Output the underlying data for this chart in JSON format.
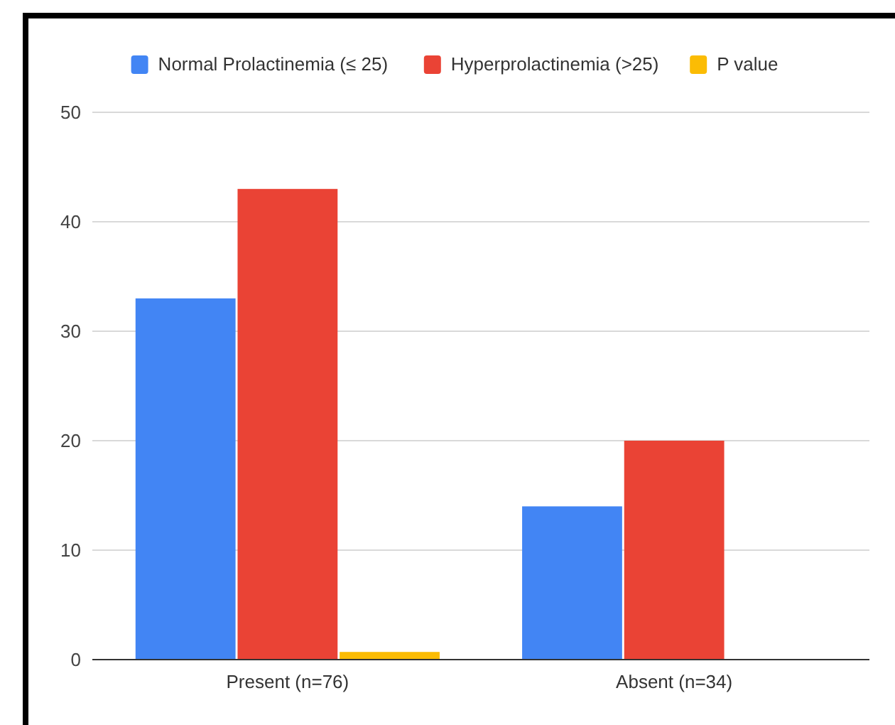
{
  "chart_data": {
    "type": "bar",
    "categories": [
      "Present (n=76)",
      "Absent (n=34)"
    ],
    "series": [
      {
        "name": "Normal Prolactinemia (≤ 25)",
        "color": "#4285f4",
        "values": [
          33,
          14
        ]
      },
      {
        "name": "Hyperprolactinemia (>25)",
        "color": "#ea4335",
        "values": [
          43,
          20
        ]
      },
      {
        "name": "P value",
        "color": "#fbbc04",
        "values": [
          0.7,
          null
        ]
      }
    ],
    "ylim": [
      0,
      50
    ],
    "yticks": [
      0,
      10,
      20,
      30,
      40,
      50
    ],
    "grid": "y",
    "legend": "top"
  }
}
